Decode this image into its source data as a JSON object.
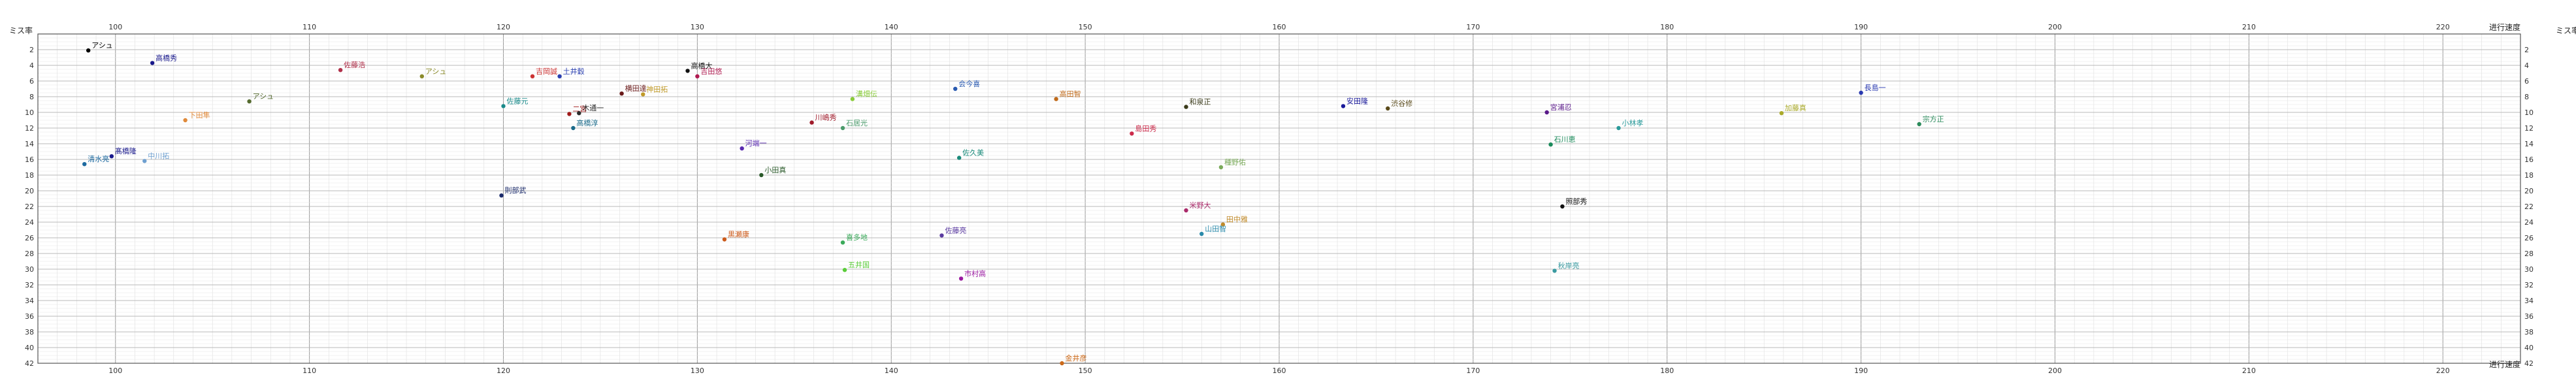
{
  "chart_data": {
    "type": "scatter",
    "xlabel": "进行速度",
    "ylabel": "ミス率",
    "xlim": [
      96,
      224
    ],
    "ylim": [
      0,
      42
    ],
    "x_ticks": [
      100,
      110,
      120,
      130,
      140,
      150,
      160,
      170,
      180,
      190,
      200,
      210,
      220
    ],
    "y_ticks": [
      2,
      4,
      6,
      8,
      10,
      12,
      14,
      16,
      18,
      20,
      22,
      24,
      26,
      28,
      30,
      32,
      34,
      36,
      38,
      40,
      42
    ],
    "grid": true,
    "points": [
      {
        "x": 98.6,
        "y": 2.1,
        "label": "アシュ",
        "color": "#000000"
      },
      {
        "x": 101.9,
        "y": 3.7,
        "label": "高橋秀",
        "color": "#1a1a8c"
      },
      {
        "x": 111.6,
        "y": 4.6,
        "label": "佐藤浩",
        "color": "#b0304a"
      },
      {
        "x": 115.8,
        "y": 5.4,
        "label": "アシュ",
        "color": "#8a8a2a"
      },
      {
        "x": 106.9,
        "y": 8.6,
        "label": "アシュ",
        "color": "#556b2f"
      },
      {
        "x": 103.6,
        "y": 11.0,
        "label": "下田隼",
        "color": "#e08a3a"
      },
      {
        "x": 99.8,
        "y": 15.6,
        "label": "髙橋隆",
        "color": "#1a1a8c"
      },
      {
        "x": 98.4,
        "y": 16.6,
        "label": "清水亮",
        "color": "#1e6aa0"
      },
      {
        "x": 101.5,
        "y": 16.2,
        "label": "中川拓",
        "color": "#6fa0d0"
      },
      {
        "x": 121.5,
        "y": 5.4,
        "label": "吉岡誠",
        "color": "#cc3333"
      },
      {
        "x": 122.9,
        "y": 5.4,
        "label": "土井穀",
        "color": "#2a3fb0"
      },
      {
        "x": 129.5,
        "y": 4.7,
        "label": "高橋大",
        "color": "#111111"
      },
      {
        "x": 130.0,
        "y": 5.4,
        "label": "吉田悠",
        "color": "#b01a50"
      },
      {
        "x": 126.1,
        "y": 7.6,
        "label": "横田達",
        "color": "#6a1a1a"
      },
      {
        "x": 127.2,
        "y": 7.7,
        "label": "神田拓",
        "color": "#c09a2a"
      },
      {
        "x": 120.0,
        "y": 9.2,
        "label": "佐藤元",
        "color": "#1a8a8a"
      },
      {
        "x": 123.4,
        "y": 10.2,
        "label": "二宮",
        "color": "#a01a1a"
      },
      {
        "x": 123.9,
        "y": 10.1,
        "label": "木通一",
        "color": "#2a2a2a"
      },
      {
        "x": 123.6,
        "y": 12.0,
        "label": "高橋淳",
        "color": "#1a6a8a"
      },
      {
        "x": 132.3,
        "y": 14.6,
        "label": "河端一",
        "color": "#5a2ab0"
      },
      {
        "x": 133.3,
        "y": 18.0,
        "label": "小田真",
        "color": "#2a5a2a"
      },
      {
        "x": 119.9,
        "y": 20.6,
        "label": "則部武",
        "color": "#1a2a6a"
      },
      {
        "x": 135.9,
        "y": 11.3,
        "label": "川嶋秀",
        "color": "#a01a2a"
      },
      {
        "x": 137.5,
        "y": 12.0,
        "label": "石居光",
        "color": "#4a9a6a"
      },
      {
        "x": 138.0,
        "y": 8.3,
        "label": "溝畑伝",
        "color": "#8acc3a"
      },
      {
        "x": 143.3,
        "y": 7.0,
        "label": "会今喜",
        "color": "#2a5ab0"
      },
      {
        "x": 148.5,
        "y": 8.3,
        "label": "高田智",
        "color": "#c06a1a"
      },
      {
        "x": 143.5,
        "y": 15.8,
        "label": "佐久美",
        "color": "#1a8a7a"
      },
      {
        "x": 155.2,
        "y": 9.3,
        "label": "和泉正",
        "color": "#3a3a1a"
      },
      {
        "x": 152.4,
        "y": 12.7,
        "label": "島田秀",
        "color": "#cc2a4a"
      },
      {
        "x": 163.3,
        "y": 9.2,
        "label": "安田隆",
        "color": "#1a1a9a"
      },
      {
        "x": 165.6,
        "y": 9.5,
        "label": "渋谷修",
        "color": "#5a4a1a"
      },
      {
        "x": 157.0,
        "y": 17.0,
        "label": "種野佑",
        "color": "#7aaa5a"
      },
      {
        "x": 155.2,
        "y": 22.5,
        "label": "米野大",
        "color": "#aa2a6a"
      },
      {
        "x": 157.1,
        "y": 24.3,
        "label": "田中雅",
        "color": "#c08a2a"
      },
      {
        "x": 156.0,
        "y": 25.5,
        "label": "山田智",
        "color": "#2a8aaa"
      },
      {
        "x": 142.6,
        "y": 25.7,
        "label": "佐藤亮",
        "color": "#5a3aa0"
      },
      {
        "x": 131.4,
        "y": 26.2,
        "label": "黒瀬康",
        "color": "#cc5a1a"
      },
      {
        "x": 137.5,
        "y": 26.6,
        "label": "喜多地",
        "color": "#3aaa5a"
      },
      {
        "x": 137.6,
        "y": 30.1,
        "label": "五井国",
        "color": "#5acc3a"
      },
      {
        "x": 143.6,
        "y": 31.2,
        "label": "市村高",
        "color": "#9a1aa0"
      },
      {
        "x": 148.8,
        "y": 42.0,
        "label": "金井彦",
        "color": "#cc6a1a"
      },
      {
        "x": 173.8,
        "y": 10.0,
        "label": "宮浦忍",
        "color": "#5a1a8a"
      },
      {
        "x": 174.0,
        "y": 14.1,
        "label": "石川恵",
        "color": "#1a8a5a"
      },
      {
        "x": 177.5,
        "y": 12.0,
        "label": "小林孝",
        "color": "#2a9a9a"
      },
      {
        "x": 174.6,
        "y": 22.0,
        "label": "照部秀",
        "color": "#111111"
      },
      {
        "x": 174.2,
        "y": 30.2,
        "label": "秋岸亮",
        "color": "#3a9aa0"
      },
      {
        "x": 185.9,
        "y": 10.1,
        "label": "加藤真",
        "color": "#aaaa2a"
      },
      {
        "x": 190.0,
        "y": 7.5,
        "label": "長島一",
        "color": "#2a3ab0"
      },
      {
        "x": 193.0,
        "y": 11.5,
        "label": "宗方正",
        "color": "#2a8a5a"
      }
    ]
  }
}
